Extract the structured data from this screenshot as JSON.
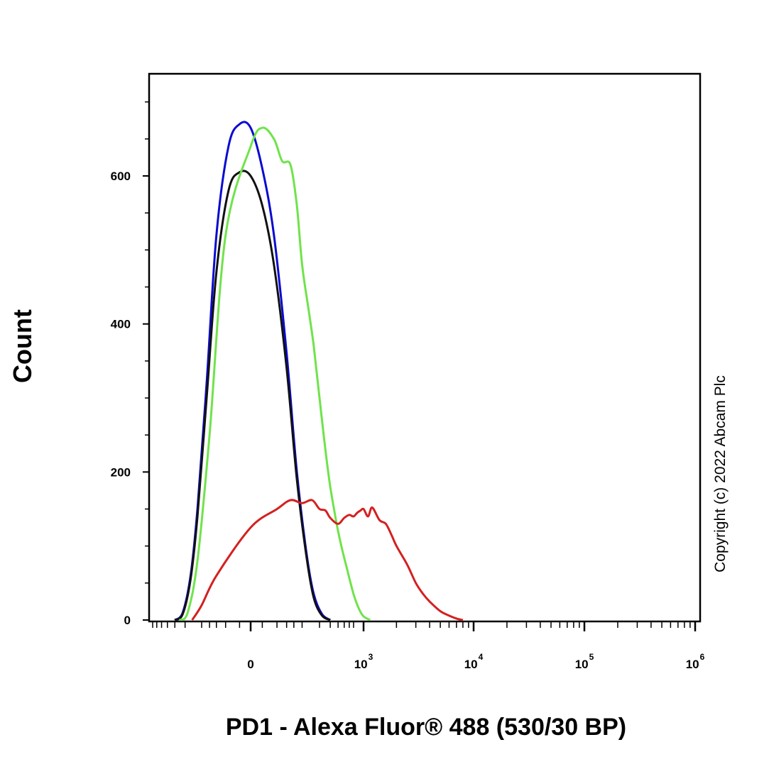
{
  "chart_data": {
    "type": "line",
    "title": "",
    "xlabel": "PD1 - Alexa Fluor® 488 (530/30 BP)",
    "ylabel": "Count",
    "x_scale": "biexponential",
    "ylim": [
      0,
      720
    ],
    "y_ticks": [
      {
        "value": 0,
        "label": "0"
      },
      {
        "value": 200,
        "label": "200"
      },
      {
        "value": 400,
        "label": "400"
      },
      {
        "value": 600,
        "label": "600"
      }
    ],
    "x_ticks": [
      {
        "value": 0,
        "base": "0",
        "exp": ""
      },
      {
        "value": 1000,
        "base": "10",
        "exp": "3"
      },
      {
        "value": 10000,
        "base": "10",
        "exp": "4"
      },
      {
        "value": 100000,
        "base": "10",
        "exp": "5"
      },
      {
        "value": 1000000,
        "base": "10",
        "exp": "6"
      }
    ],
    "grid": false,
    "legend": "none",
    "annotations": [
      "Copyright (c) 2022 Abcam Plc"
    ],
    "series": [
      {
        "color": "#0a0ad2",
        "x": [
          -300,
          -220,
          -160,
          -120,
          -80,
          -50,
          -25,
          -10,
          0,
          10,
          25,
          50,
          80,
          120,
          160,
          220,
          300
        ],
        "y": [
          0,
          10,
          60,
          150,
          320,
          520,
          640,
          670,
          665,
          610,
          520,
          360,
          200,
          90,
          35,
          8,
          0
        ]
      },
      {
        "color": "#111111",
        "x": [
          -300,
          -220,
          -160,
          -120,
          -80,
          -50,
          -25,
          -10,
          0,
          10,
          25,
          50,
          80,
          120,
          160,
          220,
          300
        ],
        "y": [
          0,
          8,
          55,
          140,
          300,
          470,
          580,
          605,
          600,
          560,
          480,
          340,
          190,
          85,
          30,
          6,
          0
        ]
      },
      {
        "color": "#6fe34a",
        "x": [
          -250,
          -180,
          -120,
          -70,
          -30,
          0,
          10,
          25,
          40,
          60,
          80,
          100,
          130,
          160,
          200,
          250,
          300,
          380,
          450,
          550,
          700,
          850,
          1000,
          1150
        ],
        "y": [
          0,
          10,
          80,
          250,
          520,
          640,
          665,
          650,
          620,
          615,
          560,
          480,
          420,
          370,
          300,
          230,
          180,
          130,
          100,
          70,
          35,
          15,
          5,
          0
        ]
      },
      {
        "color": "#d42020",
        "x": [
          -150,
          -100,
          -50,
          0,
          30,
          60,
          100,
          150,
          200,
          250,
          300,
          400,
          500,
          600,
          700,
          800,
          900,
          1000,
          1100,
          1200,
          1400,
          1600,
          1800,
          2000,
          2500,
          3000,
          3500,
          4000,
          5000,
          6000,
          7000,
          8000
        ],
        "y": [
          0,
          20,
          60,
          125,
          150,
          162,
          158,
          162,
          150,
          148,
          138,
          130,
          138,
          142,
          140,
          145,
          148,
          150,
          140,
          152,
          135,
          130,
          115,
          100,
          75,
          50,
          35,
          25,
          12,
          6,
          2,
          0
        ]
      }
    ]
  }
}
